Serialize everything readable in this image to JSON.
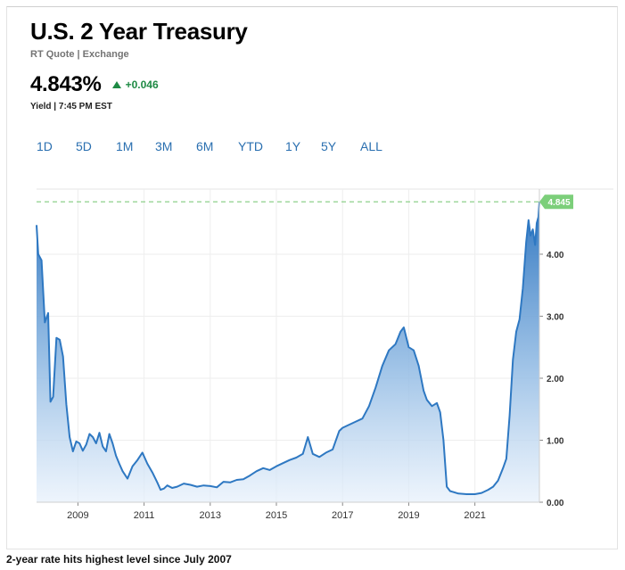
{
  "header": {
    "title": "U.S. 2 Year Treasury",
    "subtitle": "RT Quote | Exchange",
    "price": "4.843%",
    "change": "+0.046",
    "meta": "Yield | 7:45 PM EST"
  },
  "tabs": [
    "1D",
    "5D",
    "1M",
    "3M",
    "6M",
    "YTD",
    "1Y",
    "5Y",
    "ALL"
  ],
  "caption": "2-year rate hits highest level since July 2007",
  "colors": {
    "line": "#2e78c2",
    "fill_top": "#3f86cc",
    "fill_bottom": "#e3eefa",
    "accent_green": "#1e8a44",
    "badge": "#7ccf7a"
  },
  "chart_data": {
    "type": "area",
    "title": "",
    "xlabel": "",
    "ylabel": "",
    "x_ticks": [
      "2009",
      "2011",
      "2013",
      "2015",
      "2017",
      "2019",
      "2021"
    ],
    "y_ticks": [
      "0.00",
      "1.00",
      "2.00",
      "3.00",
      "4.00"
    ],
    "ylim": [
      0,
      5.05
    ],
    "xlim": [
      2007.75,
      2022.95
    ],
    "grid": true,
    "reference_line": {
      "value": 4.845,
      "label": "4.845",
      "style": "dashed"
    },
    "series": [
      {
        "x": [
          2007.75,
          2007.8,
          2007.9,
          2008.0,
          2008.1,
          2008.17,
          2008.25,
          2008.35,
          2008.45,
          2008.55,
          2008.65,
          2008.75,
          2008.85,
          2008.95,
          2009.05,
          2009.15,
          2009.25,
          2009.35,
          2009.45,
          2009.55,
          2009.65,
          2009.75,
          2009.85,
          2009.95,
          2010.05,
          2010.15,
          2010.25,
          2010.35,
          2010.5,
          2010.65,
          2010.8,
          2010.95,
          2011.1,
          2011.25,
          2011.4,
          2011.5,
          2011.6,
          2011.7,
          2011.85,
          2012.0,
          2012.2,
          2012.4,
          2012.6,
          2012.8,
          2013.0,
          2013.2,
          2013.4,
          2013.6,
          2013.8,
          2014.0,
          2014.2,
          2014.4,
          2014.6,
          2014.8,
          2015.0,
          2015.2,
          2015.4,
          2015.6,
          2015.8,
          2015.95,
          2016.1,
          2016.3,
          2016.5,
          2016.7,
          2016.9,
          2017.0,
          2017.2,
          2017.4,
          2017.6,
          2017.8,
          2018.0,
          2018.2,
          2018.4,
          2018.6,
          2018.75,
          2018.85,
          2019.0,
          2019.15,
          2019.3,
          2019.45,
          2019.55,
          2019.7,
          2019.85,
          2019.95,
          2020.05,
          2020.15,
          2020.25,
          2020.5,
          2020.75,
          2021.0,
          2021.2,
          2021.4,
          2021.55,
          2021.7,
          2021.85,
          2021.95,
          2022.05,
          2022.15,
          2022.25,
          2022.35,
          2022.45,
          2022.55,
          2022.62,
          2022.68,
          2022.75,
          2022.82,
          2022.87,
          2022.92,
          2022.95
        ],
        "y": [
          4.47,
          4.0,
          3.9,
          2.9,
          3.05,
          1.62,
          1.7,
          2.65,
          2.62,
          2.35,
          1.58,
          1.05,
          0.82,
          0.98,
          0.95,
          0.83,
          0.93,
          1.1,
          1.05,
          0.95,
          1.12,
          0.9,
          0.82,
          1.1,
          0.95,
          0.75,
          0.62,
          0.5,
          0.38,
          0.58,
          0.68,
          0.8,
          0.62,
          0.48,
          0.32,
          0.2,
          0.22,
          0.27,
          0.23,
          0.25,
          0.3,
          0.28,
          0.25,
          0.27,
          0.26,
          0.24,
          0.33,
          0.32,
          0.36,
          0.37,
          0.43,
          0.5,
          0.55,
          0.52,
          0.58,
          0.63,
          0.68,
          0.72,
          0.78,
          1.05,
          0.78,
          0.73,
          0.8,
          0.85,
          1.15,
          1.2,
          1.25,
          1.3,
          1.35,
          1.55,
          1.85,
          2.2,
          2.45,
          2.55,
          2.75,
          2.82,
          2.5,
          2.45,
          2.2,
          1.8,
          1.65,
          1.55,
          1.6,
          1.45,
          1.0,
          0.25,
          0.18,
          0.14,
          0.13,
          0.13,
          0.15,
          0.2,
          0.25,
          0.35,
          0.55,
          0.7,
          1.4,
          2.3,
          2.75,
          2.95,
          3.45,
          4.2,
          4.55,
          4.3,
          4.4,
          4.15,
          4.5,
          4.6,
          4.845
        ]
      }
    ]
  }
}
